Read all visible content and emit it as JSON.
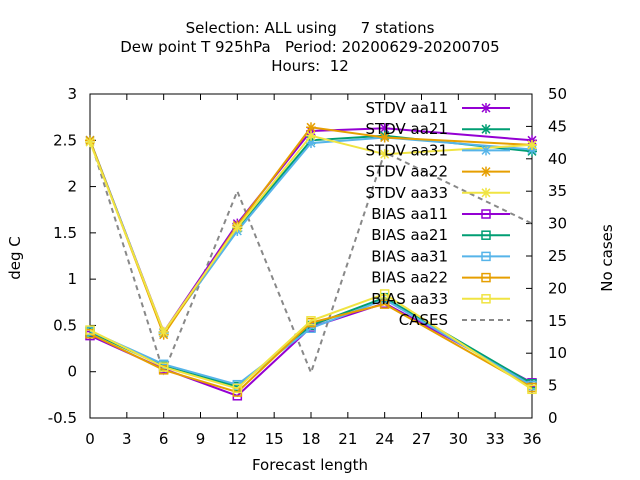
{
  "chart_data": {
    "type": "line",
    "title_lines": [
      "Selection: ALL using     7 stations",
      "Dew point T 925hPa   Period: 20200629-20200705",
      "Hours:  12"
    ],
    "xlabel": "Forecast length",
    "ylabel": "deg C",
    "y2label": "No cases",
    "xlim": [
      0,
      36
    ],
    "ylim": [
      -0.5,
      3
    ],
    "y2lim": [
      0,
      50
    ],
    "xticks": [
      "0",
      "3",
      "6",
      "9",
      "12",
      "15",
      "18",
      "21",
      "24",
      "27",
      "30",
      "33",
      "36"
    ],
    "yticks": [
      "-0.5",
      "0",
      "0.5",
      "1",
      "1.5",
      "2",
      "2.5",
      "3"
    ],
    "y2ticks": [
      "0",
      "5",
      "10",
      "15",
      "20",
      "25",
      "30",
      "35",
      "40",
      "45",
      "50"
    ],
    "grid": false,
    "legend_position": "top-right",
    "x": [
      0,
      6,
      12,
      18,
      24,
      36
    ],
    "series": [
      {
        "name": "STDV aa11",
        "color": "#9400d3",
        "marker": "x",
        "axis": "y1",
        "values": [
          2.5,
          0.43,
          1.6,
          2.6,
          2.63,
          2.5
        ]
      },
      {
        "name": "STDV aa21",
        "color": "#009e73",
        "marker": "x",
        "axis": "y1",
        "values": [
          2.5,
          0.42,
          1.55,
          2.5,
          2.55,
          2.38
        ]
      },
      {
        "name": "STDV aa31",
        "color": "#56b4e9",
        "marker": "x",
        "axis": "y1",
        "values": [
          2.5,
          0.42,
          1.52,
          2.47,
          2.53,
          2.4
        ]
      },
      {
        "name": "STDV aa22",
        "color": "#e69f00",
        "marker": "x",
        "axis": "y1",
        "values": [
          2.5,
          0.4,
          1.58,
          2.64,
          2.53,
          2.45
        ]
      },
      {
        "name": "STDV aa33",
        "color": "#f0e442",
        "marker": "x",
        "axis": "y1",
        "values": [
          2.48,
          0.43,
          1.56,
          2.55,
          2.35,
          2.45
        ]
      },
      {
        "name": "BIAS aa11",
        "color": "#9400d3",
        "marker": "square",
        "axis": "y1",
        "values": [
          0.39,
          0.03,
          -0.26,
          0.48,
          0.74,
          -0.12
        ]
      },
      {
        "name": "BIAS aa21",
        "color": "#009e73",
        "marker": "square",
        "axis": "y1",
        "values": [
          0.43,
          0.06,
          -0.16,
          0.5,
          0.8,
          -0.13
        ]
      },
      {
        "name": "BIAS aa31",
        "color": "#56b4e9",
        "marker": "square",
        "axis": "y1",
        "values": [
          0.44,
          0.08,
          -0.14,
          0.47,
          0.78,
          -0.15
        ]
      },
      {
        "name": "BIAS aa22",
        "color": "#e69f00",
        "marker": "square",
        "axis": "y1",
        "values": [
          0.41,
          0.02,
          -0.22,
          0.53,
          0.73,
          -0.17
        ]
      },
      {
        "name": "BIAS aa33",
        "color": "#f0e442",
        "marker": "square",
        "axis": "y1",
        "values": [
          0.45,
          0.05,
          -0.18,
          0.55,
          0.84,
          -0.19
        ]
      },
      {
        "name": "CASES",
        "color": "#888888",
        "marker": "none",
        "dashed": true,
        "axis": "y2",
        "values": [
          43,
          7,
          35,
          7,
          41,
          30
        ]
      }
    ]
  }
}
